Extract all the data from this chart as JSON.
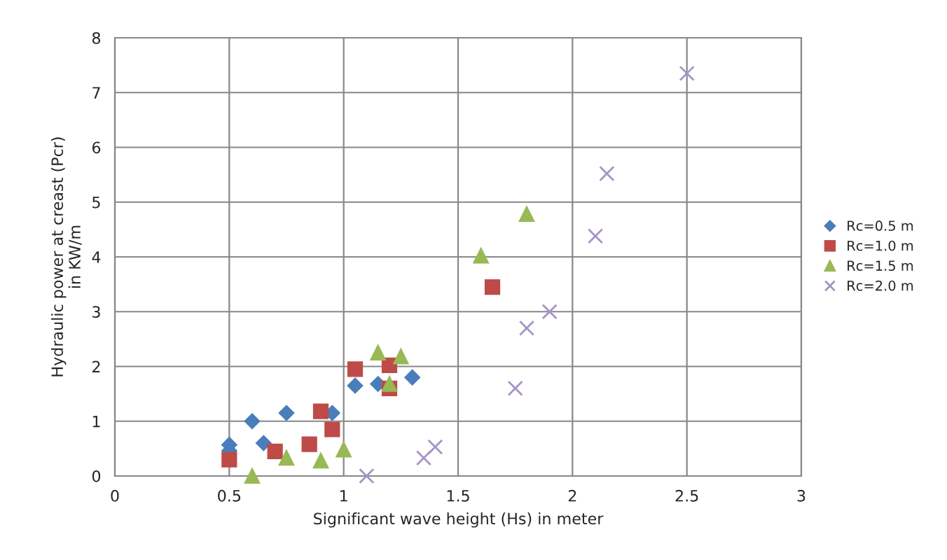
{
  "chart_data": {
    "type": "scatter",
    "xlabel": "Significant wave height (Hs) in meter",
    "ylabel": "Hydraulic power at creast (Pcr)\nin KW/m",
    "xlim": [
      0,
      3
    ],
    "xticks": [
      0,
      0.5,
      1,
      1.5,
      2,
      2.5,
      3
    ],
    "ylim": [
      0,
      8
    ],
    "yticks": [
      0,
      1,
      2,
      3,
      4,
      5,
      6,
      7,
      8
    ],
    "grid": true,
    "legend": "right",
    "series": [
      {
        "name": "Rc=0.5 m",
        "color": "#4a7ebb",
        "marker": "diamond",
        "x": [
          0.5,
          0.5,
          0.6,
          0.65,
          0.75,
          0.95,
          1.05,
          1.15,
          1.3
        ],
        "values": [
          0.57,
          0.46,
          1.0,
          0.6,
          1.15,
          1.15,
          1.65,
          1.68,
          1.8
        ]
      },
      {
        "name": "Rc=1.0 m",
        "color": "#be4b48",
        "marker": "square",
        "x": [
          0.5,
          0.7,
          0.85,
          0.9,
          0.95,
          1.05,
          1.2,
          1.2,
          1.65
        ],
        "values": [
          0.3,
          0.45,
          0.58,
          1.18,
          0.85,
          1.95,
          2.02,
          1.6,
          3.45
        ]
      },
      {
        "name": "Rc=1.5 m",
        "color": "#98b954",
        "marker": "triangle",
        "x": [
          0.6,
          0.75,
          0.9,
          1.0,
          1.15,
          1.2,
          1.25,
          1.6,
          1.8
        ],
        "values": [
          0.0,
          0.33,
          0.28,
          0.48,
          2.25,
          1.68,
          2.18,
          4.02,
          4.78
        ]
      },
      {
        "name": "Rc=2.0 m",
        "color": "#a594c6",
        "marker": "cross",
        "x": [
          1.1,
          1.35,
          1.4,
          1.75,
          1.8,
          1.9,
          2.1,
          2.15,
          2.5
        ],
        "values": [
          0.0,
          0.33,
          0.53,
          1.6,
          2.7,
          3.0,
          4.38,
          5.52,
          7.35
        ]
      }
    ]
  }
}
